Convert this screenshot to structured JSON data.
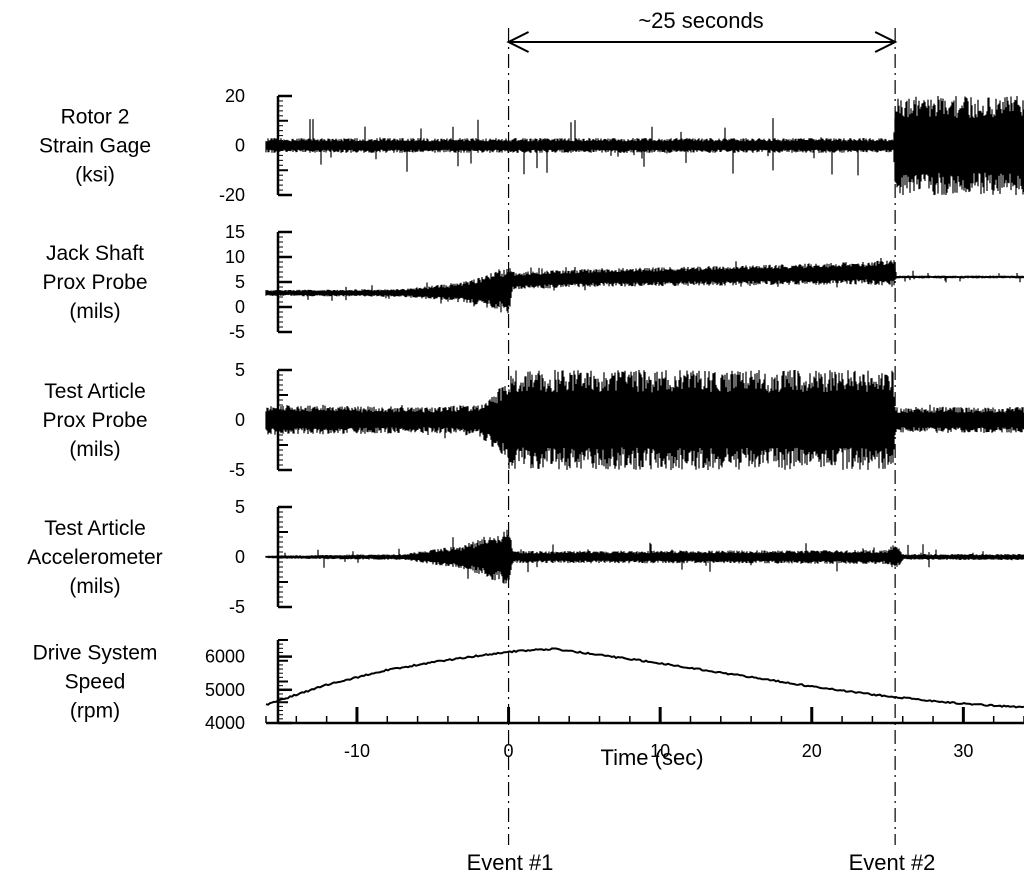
{
  "chart_data": {
    "type": "line",
    "x_unit": "sec",
    "xlabel": "Time (sec)",
    "xlim": [
      -16,
      34
    ],
    "xticks": [
      -10,
      0,
      10,
      20,
      30
    ],
    "annotations": {
      "interval_label": "~25 seconds",
      "interval_x": [
        0,
        25.5
      ],
      "event1_label": "Event #1",
      "event1_x": 0,
      "event2_label": "Event #2",
      "event2_x": 25.5
    },
    "panels": [
      {
        "label_lines": [
          "Rotor 2",
          "Strain Gage",
          "(ksi)"
        ],
        "ylim": [
          -20,
          20
        ],
        "yticks": [
          20,
          0,
          -20
        ],
        "series": [
          {
            "style": "noise",
            "x": [
              -16,
              0,
              25.4,
              25.5,
              34
            ],
            "center": [
              0,
              0,
              0,
              0,
              0
            ],
            "amplitude": [
              3,
              3,
              3,
              20,
              20
            ],
            "spike_amplitude": 10
          }
        ]
      },
      {
        "label_lines": [
          "Jack Shaft",
          "Prox Probe",
          "(mils)"
        ],
        "ylim": [
          -5,
          15
        ],
        "yticks": [
          15,
          10,
          5,
          0,
          -5
        ],
        "series": [
          {
            "style": "noise",
            "x": [
              -16,
              -7,
              -3,
              -0.2,
              0,
              0.3,
              5,
              15,
              24,
              25.4,
              25.6,
              34
            ],
            "center": [
              2.8,
              2.8,
              3.0,
              3.5,
              3.5,
              5.2,
              5.8,
              6.3,
              6.8,
              7.0,
              6.0,
              6.0
            ],
            "amplitude": [
              0.6,
              0.8,
              2.0,
              4.5,
              6.0,
              1.8,
              1.8,
              2.0,
              2.3,
              3.0,
              0.3,
              0.3
            ],
            "spike_amplitude": 1
          }
        ]
      },
      {
        "label_lines": [
          "Test Article",
          "Prox Probe",
          "(mils)"
        ],
        "ylim": [
          -5,
          5
        ],
        "yticks": [
          5,
          0,
          -5
        ],
        "series": [
          {
            "style": "noise",
            "x": [
              -16,
              -5,
              -2,
              -0.1,
              0,
              25.4,
              25.5,
              34
            ],
            "center": [
              0,
              0,
              0,
              0,
              0,
              0,
              0,
              0
            ],
            "amplitude": [
              1.5,
              1.3,
              1.6,
              3.8,
              5,
              5,
              1.3,
              1.3
            ],
            "spike_amplitude": 0.5
          }
        ]
      },
      {
        "label_lines": [
          "Test Article",
          "Accelerometer",
          "(mils)"
        ],
        "ylim": [
          -5,
          5
        ],
        "yticks": [
          5,
          0,
          -5
        ],
        "series": [
          {
            "style": "noise",
            "x": [
              -16,
              -7,
              -3,
              -0.2,
              0,
              0.3,
              25,
              25.5,
              26,
              34
            ],
            "center": [
              0,
              0,
              0,
              0,
              0,
              0,
              0,
              0,
              0,
              0
            ],
            "amplitude": [
              0.15,
              0.3,
              1.2,
              2.8,
              3.2,
              0.6,
              0.7,
              1.5,
              0.3,
              0.3
            ],
            "spike_amplitude": 1
          }
        ]
      },
      {
        "label_lines": [
          "Drive System",
          "Speed",
          "(rpm)"
        ],
        "ylim": [
          4000,
          6500
        ],
        "yticks": [
          6000,
          5000,
          4000
        ],
        "series": [
          {
            "style": "line",
            "x": [
              -16,
              -12,
              -8,
              -4,
              0,
              3,
              6,
              10,
              15,
              20,
              25,
              30,
              34
            ],
            "y": [
              4550,
              5150,
              5600,
              5900,
              6150,
              6230,
              6050,
              5800,
              5450,
              5100,
              4800,
              4580,
              4470
            ]
          }
        ]
      }
    ]
  }
}
